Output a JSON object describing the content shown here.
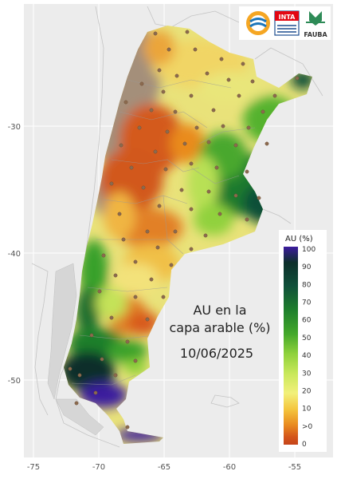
{
  "map": {
    "title_lines": [
      "AU en la",
      "capa arable (%)"
    ],
    "date": "10/06/2025",
    "x_ticks": [
      "-75",
      "-70",
      "-65",
      "-60",
      "-55"
    ],
    "y_ticks": [
      "-30",
      "-40",
      "-50"
    ]
  },
  "legend": {
    "title": "AU (%)",
    "labels": [
      "100",
      "90",
      "80",
      "70",
      "60",
      "50",
      "40",
      "30",
      "20",
      "10",
      ">0",
      "0"
    ],
    "colors": [
      "#3b1a9e",
      "#0d2f2b",
      "#10503a",
      "#1e7f2c",
      "#43a82a",
      "#8fd13b",
      "#c8e85a",
      "#f2f07a",
      "#f4c63e",
      "#e98b1f",
      "#d4561a",
      "#c5431a"
    ]
  },
  "logos": [
    {
      "name": "ora",
      "text": ""
    },
    {
      "name": "inta",
      "text": "INTA"
    },
    {
      "name": "fauba",
      "text": "FAUBA"
    }
  ],
  "colors": {
    "background": "#ececec",
    "country_outline": "#bdbdbd",
    "station_dot": "#8b6a4e"
  }
}
